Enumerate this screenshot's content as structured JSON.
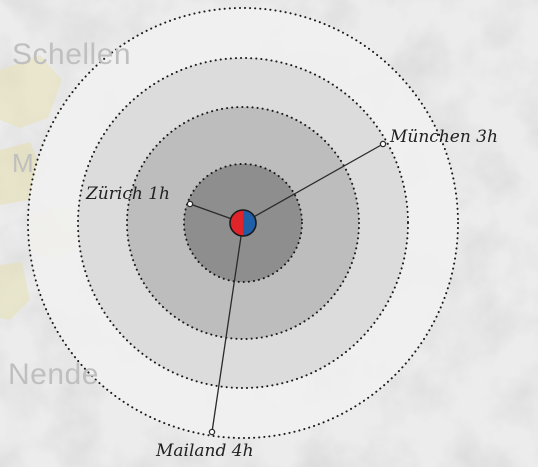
{
  "background_places": {
    "schellenberg": "Schellen",
    "m": "M",
    "nendeln": "Nende"
  },
  "destinations": [
    {
      "name": "Zürich 1h",
      "hours": 1
    },
    {
      "name": "München 3h",
      "hours": 3
    },
    {
      "name": "Mailand 4h",
      "hours": 4
    }
  ],
  "colors": {
    "ring_1": "#8e8e8e",
    "ring_2": "#bdbdbd",
    "ring_3": "#dadada",
    "ring_4": "#f1f1f1",
    "marker_left": "#e0242a",
    "marker_right": "#1f5fa8"
  }
}
